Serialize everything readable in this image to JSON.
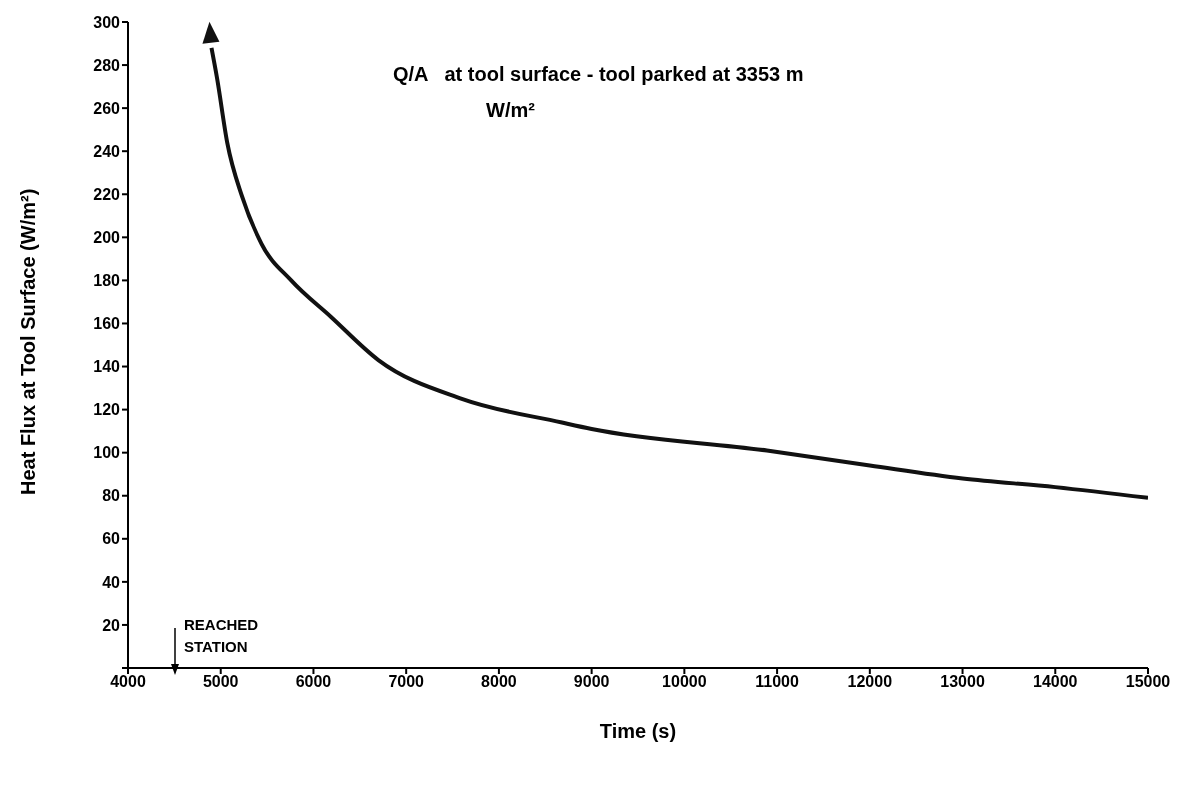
{
  "chart_data": {
    "type": "line",
    "xlabel": "Time (s)",
    "ylabel": "Heat Flux at Tool Surface (W/m²)",
    "annotations": [
      "Q/A   at tool surface - tool parked at 3353 m",
      "W/m²",
      "REACHED STATION"
    ],
    "series": [
      {
        "color": "#111111",
        "x": [
          4900,
          4960,
          5070,
          5230,
          5440,
          5760,
          6190,
          6700,
          7600,
          8680,
          9000,
          10890,
          12000,
          13000,
          14000,
          15000
        ],
        "values": [
          288,
          274,
          244,
          219,
          197,
          180,
          163,
          143,
          125,
          114,
          111,
          101,
          94,
          88,
          84,
          79
        ]
      }
    ],
    "xlim": [
      4000,
      15000
    ],
    "xticks": [
      4000,
      5000,
      6000,
      7000,
      8000,
      9000,
      10000,
      11000,
      12000,
      13000,
      14000,
      15000
    ],
    "ylim": [
      0,
      300
    ],
    "yticks": [
      {
        "value": 0,
        "label": null
      },
      20,
      40,
      60,
      80,
      100,
      120,
      140,
      160,
      180,
      200,
      220,
      240,
      260,
      280,
      300
    ],
    "grid": false,
    "legend": false,
    "marker": "none",
    "line_style": "solid"
  }
}
